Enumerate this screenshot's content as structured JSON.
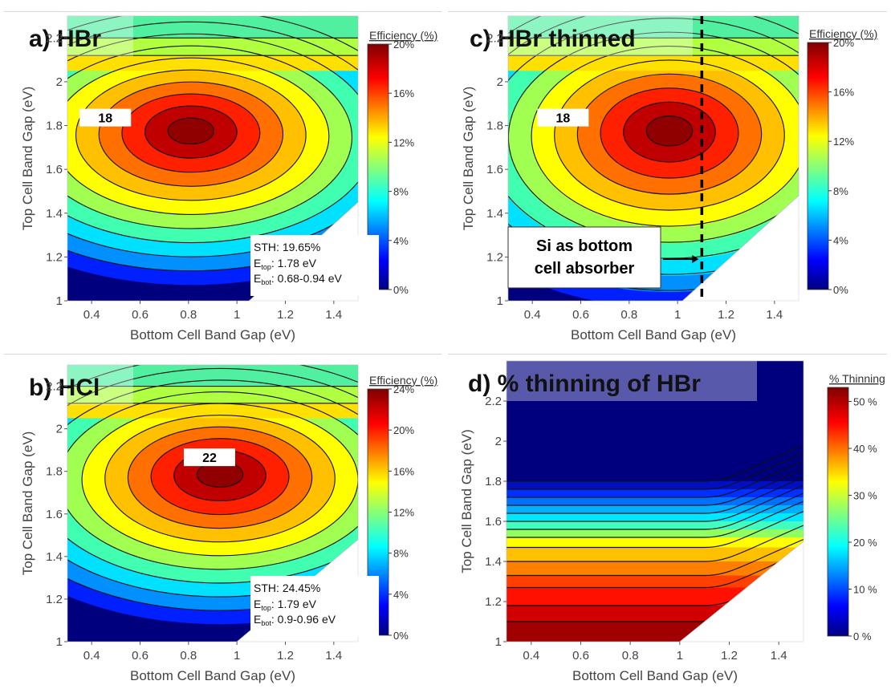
{
  "chart_data": [
    {
      "type": "heatmap",
      "panel_label": "a) HBr",
      "xlabel": "Bottom Cell Band Gap (eV)",
      "ylabel": "Top Cell Band Gap (eV)",
      "xlim": [
        0.3,
        1.5
      ],
      "ylim": [
        1.0,
        2.3
      ],
      "x_ticks": [
        "0.4",
        "0.6",
        "0.8",
        "1",
        "1.2",
        "1.4"
      ],
      "y_ticks": [
        "1",
        "1.2",
        "1.4",
        "1.6",
        "1.8",
        "2",
        "2.2"
      ],
      "colorbar_title": "Efficiency (%)",
      "colorbar_ticks": [
        "0%",
        "4%",
        "8%",
        "12%",
        "16%",
        "20%"
      ],
      "colorbar_max": 20,
      "valid_region": [
        [
          0.3,
          1.0
        ],
        [
          1.05,
          1.0
        ],
        [
          1.5,
          1.45
        ],
        [
          1.5,
          2.3
        ],
        [
          0.3,
          2.3
        ]
      ],
      "peak": {
        "x": 0.81,
        "y": 1.78
      },
      "peak_label": "18",
      "peak_label_pos": [
        0.45,
        1.84
      ],
      "annotation": {
        "sth": "STH: 19.65%",
        "etop_label": "E",
        "etop_sub": "top",
        "etop_val": ": 1.78 eV",
        "ebot_label": "E",
        "ebot_sub": "bot",
        "ebot_val": ": 0.68-0.94 eV"
      }
    },
    {
      "type": "heatmap",
      "panel_label": "b) HCl",
      "xlabel": "Bottom Cell Band Gap (eV)",
      "ylabel": "Top Cell Band Gap (eV)",
      "xlim": [
        0.3,
        1.5
      ],
      "ylim": [
        1.0,
        2.3
      ],
      "x_ticks": [
        "0.4",
        "0.6",
        "0.8",
        "1",
        "1.2",
        "1.4"
      ],
      "y_ticks": [
        "1",
        "1.2",
        "1.4",
        "1.6",
        "1.8",
        "2",
        "2.2"
      ],
      "colorbar_title": "Efficiency (%)",
      "colorbar_ticks": [
        "0%",
        "4%",
        "8%",
        "12%",
        "16%",
        "20%",
        "24%"
      ],
      "colorbar_max": 24,
      "valid_region": [
        [
          0.3,
          1.0
        ],
        [
          1.0,
          1.0
        ],
        [
          1.5,
          1.48
        ],
        [
          1.5,
          2.3
        ],
        [
          0.3,
          2.3
        ]
      ],
      "peak": {
        "x": 0.93,
        "y": 1.79
      },
      "peak_label": "22",
      "peak_label_pos": [
        0.88,
        1.87
      ],
      "annotation": {
        "sth": "STH: 24.45%",
        "etop_label": "E",
        "etop_sub": "top",
        "etop_val": ": 1.79 eV",
        "ebot_label": "E",
        "ebot_sub": "bot",
        "ebot_val": ": 0.9-0.96 eV"
      }
    },
    {
      "type": "heatmap",
      "panel_label": "c) HBr thinned",
      "xlabel": "Bottom Cell Band Gap (eV)",
      "ylabel": "Top Cell Band Gap (eV)",
      "xlim": [
        0.3,
        1.5
      ],
      "ylim": [
        1.0,
        2.3
      ],
      "x_ticks": [
        "0.4",
        "0.6",
        "0.8",
        "1",
        "1.2",
        "1.4"
      ],
      "y_ticks": [
        "1",
        "1.2",
        "1.4",
        "1.6",
        "1.8",
        "2",
        "2.2"
      ],
      "colorbar_title": "Efficiency (%)",
      "colorbar_ticks": [
        "0%",
        "4%",
        "8%",
        "12%",
        "16%",
        "20%"
      ],
      "colorbar_max": 20,
      "valid_region": [
        [
          0.3,
          1.0
        ],
        [
          1.02,
          1.0
        ],
        [
          1.5,
          1.48
        ],
        [
          1.5,
          2.3
        ],
        [
          0.3,
          2.3
        ]
      ],
      "peak": {
        "x": 0.9,
        "y": 1.78
      },
      "peak_label": "18",
      "peak_label_pos": [
        0.52,
        1.84
      ],
      "si_line_x": 1.1,
      "si_label": [
        "Si as bottom",
        "cell absorber"
      ]
    },
    {
      "type": "heatmap",
      "panel_label": "d) % thinning of HBr",
      "xlabel": "Bottom Cell Band Gap (eV)",
      "ylabel": "Top Cell Band Gap (eV)",
      "xlim": [
        0.3,
        1.5
      ],
      "ylim": [
        1.0,
        2.4
      ],
      "x_ticks": [
        "0.4",
        "0.6",
        "0.8",
        "1",
        "1.2",
        "1.4"
      ],
      "y_ticks": [
        "1",
        "1.2",
        "1.4",
        "1.6",
        "1.8",
        "2",
        "2.2"
      ],
      "colorbar_title": "% Thinning",
      "colorbar_ticks": [
        "0 %",
        "10 %",
        "20 %",
        "30 %",
        "40 %",
        "50 %"
      ],
      "colorbar_max": 53,
      "valid_region": [
        [
          0.3,
          1.0
        ],
        [
          1.0,
          1.0
        ],
        [
          1.5,
          1.5
        ],
        [
          1.5,
          2.4
        ],
        [
          0.3,
          2.4
        ]
      ]
    }
  ]
}
